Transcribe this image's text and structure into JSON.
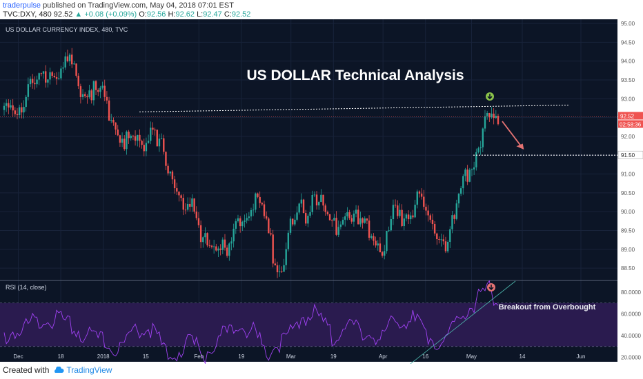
{
  "header": {
    "user": "traderpulse",
    "published": " published on TradingView.com, May 04, 2018 07:01 EST",
    "symbol": "TVC:DXY, 480",
    "last": "92.52",
    "change_arrow": "▲",
    "change": "+0.08 (+0.09%)",
    "o_label": "O:",
    "o": "92.56",
    "h_label": "H:",
    "h": "92.62",
    "l_label": "L:",
    "l": "92.47",
    "c_label": "C:",
    "c": "92.52"
  },
  "footer": {
    "created": "Created with",
    "brand": "TradingView"
  },
  "colors": {
    "bg": "#0c1526",
    "up": "#26a69a",
    "down": "#ef5350",
    "rsi": "#a142f4",
    "rsi_band": "#2a1b4f",
    "accent_green": "#8bc34a",
    "accent_red": "#e57373"
  },
  "chart_data": [
    {
      "type": "candlestick",
      "title": "US DOLLAR CURRENCY INDEX, 480, TVC",
      "annotation": "US DOLLAR Technical Analysis",
      "ylim": [
        88.3,
        95.0
      ],
      "y_ticks": [
        "95.00",
        "94.50",
        "94.00",
        "93.50",
        "93.00",
        "92.50",
        "92.00",
        "91.50",
        "91.00",
        "90.50",
        "90.00",
        "89.50",
        "89.00",
        "88.50"
      ],
      "last_price_label": "92.52",
      "countdown_label": "02:58:36",
      "level_label": "91.50",
      "level": 91.5,
      "resistance_line": [
        92.65,
        92.83
      ],
      "close_path": [
        {
          "i": 0,
          "v": 92.7
        },
        {
          "i": 6,
          "v": 93.0
        },
        {
          "i": 12,
          "v": 93.4
        },
        {
          "i": 18,
          "v": 93.8
        },
        {
          "i": 22,
          "v": 94.1
        },
        {
          "i": 26,
          "v": 93.9
        },
        {
          "i": 30,
          "v": 94.05
        },
        {
          "i": 34,
          "v": 93.6
        },
        {
          "i": 40,
          "v": 93.4
        },
        {
          "i": 46,
          "v": 93.2
        },
        {
          "i": 52,
          "v": 92.4
        },
        {
          "i": 58,
          "v": 91.9
        },
        {
          "i": 64,
          "v": 92.1
        },
        {
          "i": 68,
          "v": 92.55
        },
        {
          "i": 72,
          "v": 91.8
        },
        {
          "i": 76,
          "v": 90.9
        },
        {
          "i": 80,
          "v": 90.7
        },
        {
          "i": 86,
          "v": 90.3
        },
        {
          "i": 90,
          "v": 89.2
        },
        {
          "i": 96,
          "v": 89.5
        },
        {
          "i": 102,
          "v": 88.9
        },
        {
          "i": 106,
          "v": 89.6
        },
        {
          "i": 110,
          "v": 90.2
        },
        {
          "i": 114,
          "v": 90.5
        },
        {
          "i": 118,
          "v": 90.1
        },
        {
          "i": 122,
          "v": 89.3
        },
        {
          "i": 126,
          "v": 88.6
        },
        {
          "i": 130,
          "v": 89.5
        },
        {
          "i": 134,
          "v": 90.1
        },
        {
          "i": 138,
          "v": 90.2
        },
        {
          "i": 142,
          "v": 90.8
        },
        {
          "i": 146,
          "v": 90.1
        },
        {
          "i": 150,
          "v": 89.7
        },
        {
          "i": 154,
          "v": 90.1
        },
        {
          "i": 158,
          "v": 90.3
        },
        {
          "i": 162,
          "v": 89.8
        },
        {
          "i": 166,
          "v": 89.9
        },
        {
          "i": 170,
          "v": 89.6
        },
        {
          "i": 174,
          "v": 89.2
        },
        {
          "i": 178,
          "v": 90.1
        },
        {
          "i": 182,
          "v": 89.9
        },
        {
          "i": 186,
          "v": 90.3
        },
        {
          "i": 190,
          "v": 90.5
        },
        {
          "i": 194,
          "v": 90.0
        },
        {
          "i": 198,
          "v": 89.6
        },
        {
          "i": 202,
          "v": 89.4
        },
        {
          "i": 206,
          "v": 89.9
        },
        {
          "i": 210,
          "v": 90.8
        },
        {
          "i": 214,
          "v": 91.5
        },
        {
          "i": 218,
          "v": 92.2
        },
        {
          "i": 222,
          "v": 92.65
        },
        {
          "i": 226,
          "v": 92.52
        }
      ],
      "n_bars": 227
    },
    {
      "type": "line",
      "title": "RSI (14, close)",
      "annotation": "Breakout from Overbought",
      "ylim": [
        17,
        89
      ],
      "bands": [
        30,
        70
      ],
      "y_ticks": [
        "80.0000",
        "60.0000",
        "40.0000",
        "20.0000"
      ],
      "x_ticks": [
        "Dec",
        "18",
        "2018",
        "15",
        "Feb",
        "19",
        "Mar",
        "19",
        "Apr",
        "16",
        "May",
        "14",
        "Jun"
      ],
      "rsi_path": [
        {
          "i": 0,
          "v": 45
        },
        {
          "i": 10,
          "v": 55
        },
        {
          "i": 20,
          "v": 62
        },
        {
          "i": 28,
          "v": 58
        },
        {
          "i": 36,
          "v": 48
        },
        {
          "i": 44,
          "v": 40
        },
        {
          "i": 52,
          "v": 30
        },
        {
          "i": 60,
          "v": 48
        },
        {
          "i": 66,
          "v": 56
        },
        {
          "i": 72,
          "v": 35
        },
        {
          "i": 78,
          "v": 30
        },
        {
          "i": 86,
          "v": 38
        },
        {
          "i": 92,
          "v": 28
        },
        {
          "i": 100,
          "v": 45
        },
        {
          "i": 108,
          "v": 55
        },
        {
          "i": 114,
          "v": 48
        },
        {
          "i": 120,
          "v": 30
        },
        {
          "i": 128,
          "v": 40
        },
        {
          "i": 136,
          "v": 62
        },
        {
          "i": 142,
          "v": 65
        },
        {
          "i": 150,
          "v": 45
        },
        {
          "i": 158,
          "v": 55
        },
        {
          "i": 166,
          "v": 48
        },
        {
          "i": 172,
          "v": 40
        },
        {
          "i": 178,
          "v": 58
        },
        {
          "i": 186,
          "v": 62
        },
        {
          "i": 194,
          "v": 45
        },
        {
          "i": 200,
          "v": 38
        },
        {
          "i": 206,
          "v": 55
        },
        {
          "i": 212,
          "v": 72
        },
        {
          "i": 218,
          "v": 80
        },
        {
          "i": 222,
          "v": 86
        },
        {
          "i": 226,
          "v": 76
        }
      ],
      "trendline": [
        20,
        87
      ]
    }
  ]
}
